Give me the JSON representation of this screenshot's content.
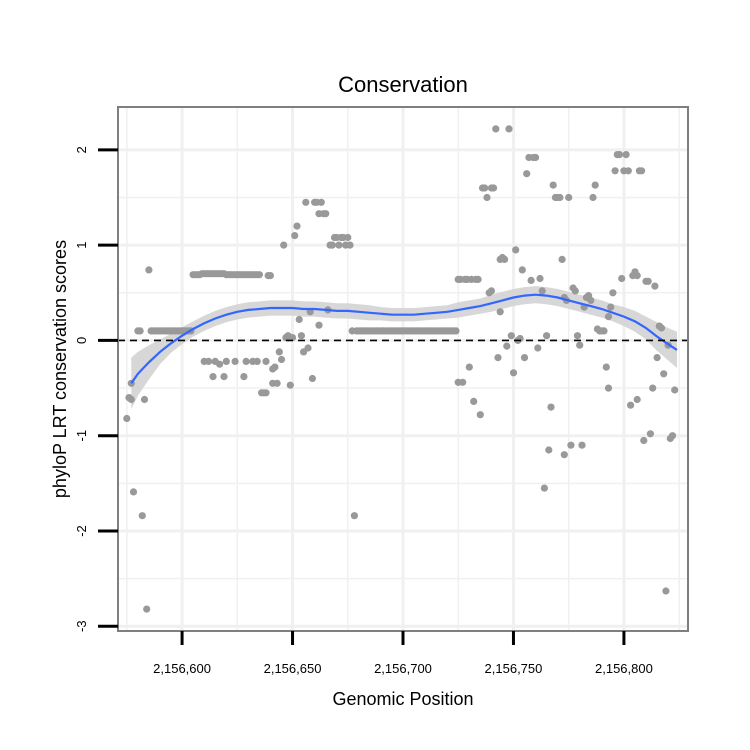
{
  "chart_data": {
    "type": "scatter",
    "title": "Conservation",
    "xlabel": "Genomic Position",
    "ylabel": "phyloP LRT conservation scores",
    "xlim": [
      2156571,
      2156829
    ],
    "ylim": [
      -3.05,
      2.45
    ],
    "x_ticks": [
      2156600,
      2156650,
      2156700,
      2156750,
      2156800
    ],
    "x_tick_labels": [
      "2,156,600",
      "2,156,650",
      "2,156,700",
      "2,156,750",
      "2,156,800"
    ],
    "y_ticks": [
      -3,
      -2,
      -1,
      0,
      1,
      2
    ],
    "y_tick_labels": [
      "-3",
      "-2",
      "-1",
      "0",
      "1",
      "2"
    ],
    "reference_line": {
      "y": 0,
      "style": "dashed"
    },
    "grid": true,
    "colors": {
      "points": "#999999",
      "smooth_line": "#3366ff",
      "confidence_band": "#d3d3d3",
      "panel_background": "#ffffff",
      "gridline": "#f0f0f0",
      "border": "#7f7f7f"
    },
    "points": [
      {
        "x": 2156575,
        "y": -0.82
      },
      {
        "x": 2156576,
        "y": -0.6
      },
      {
        "x": 2156577,
        "y": -0.45
      },
      {
        "x": 2156577,
        "y": -0.62
      },
      {
        "x": 2156578,
        "y": -1.59
      },
      {
        "x": 2156580,
        "y": 0.1
      },
      {
        "x": 2156581,
        "y": 0.1
      },
      {
        "x": 2156582,
        "y": -1.84
      },
      {
        "x": 2156583,
        "y": -0.62
      },
      {
        "x": 2156584,
        "y": -2.82
      },
      {
        "x": 2156585,
        "y": 0.74
      },
      {
        "x": 2156586,
        "y": 0.1
      },
      {
        "x": 2156587,
        "y": 0.1
      },
      {
        "x": 2156588,
        "y": 0.1
      },
      {
        "x": 2156589,
        "y": 0.1
      },
      {
        "x": 2156590,
        "y": 0.1
      },
      {
        "x": 2156591,
        "y": 0.1
      },
      {
        "x": 2156592,
        "y": 0.1
      },
      {
        "x": 2156593,
        "y": 0.1
      },
      {
        "x": 2156594,
        "y": 0.1
      },
      {
        "x": 2156595,
        "y": 0.1
      },
      {
        "x": 2156596,
        "y": 0.1
      },
      {
        "x": 2156597,
        "y": 0.1
      },
      {
        "x": 2156598,
        "y": 0.1
      },
      {
        "x": 2156599,
        "y": 0.1
      },
      {
        "x": 2156600,
        "y": 0.1
      },
      {
        "x": 2156601,
        "y": 0.1
      },
      {
        "x": 2156602,
        "y": 0.1
      },
      {
        "x": 2156603,
        "y": 0.1
      },
      {
        "x": 2156604,
        "y": 0.1
      },
      {
        "x": 2156605,
        "y": 0.69
      },
      {
        "x": 2156606,
        "y": 0.69
      },
      {
        "x": 2156607,
        "y": 0.69
      },
      {
        "x": 2156608,
        "y": 0.69
      },
      {
        "x": 2156609,
        "y": 0.7
      },
      {
        "x": 2156610,
        "y": -0.22
      },
      {
        "x": 2156610,
        "y": 0.7
      },
      {
        "x": 2156611,
        "y": 0.7
      },
      {
        "x": 2156612,
        "y": -0.22
      },
      {
        "x": 2156612,
        "y": 0.7
      },
      {
        "x": 2156613,
        "y": 0.7
      },
      {
        "x": 2156614,
        "y": -0.38
      },
      {
        "x": 2156614,
        "y": 0.7
      },
      {
        "x": 2156615,
        "y": -0.22
      },
      {
        "x": 2156615,
        "y": 0.7
      },
      {
        "x": 2156616,
        "y": 0.7
      },
      {
        "x": 2156617,
        "y": -0.25
      },
      {
        "x": 2156617,
        "y": 0.7
      },
      {
        "x": 2156618,
        "y": 0.7
      },
      {
        "x": 2156619,
        "y": -0.38
      },
      {
        "x": 2156619,
        "y": 0.7
      },
      {
        "x": 2156620,
        "y": -0.22
      },
      {
        "x": 2156620,
        "y": 0.69
      },
      {
        "x": 2156621,
        "y": 0.69
      },
      {
        "x": 2156622,
        "y": 0.69
      },
      {
        "x": 2156623,
        "y": 0.69
      },
      {
        "x": 2156624,
        "y": -0.22
      },
      {
        "x": 2156624,
        "y": 0.69
      },
      {
        "x": 2156625,
        "y": 0.69
      },
      {
        "x": 2156626,
        "y": 0.69
      },
      {
        "x": 2156627,
        "y": 0.69
      },
      {
        "x": 2156628,
        "y": -0.38
      },
      {
        "x": 2156628,
        "y": 0.69
      },
      {
        "x": 2156629,
        "y": -0.22
      },
      {
        "x": 2156629,
        "y": 0.69
      },
      {
        "x": 2156630,
        "y": 0.69
      },
      {
        "x": 2156631,
        "y": 0.69
      },
      {
        "x": 2156632,
        "y": -0.22
      },
      {
        "x": 2156632,
        "y": 0.69
      },
      {
        "x": 2156633,
        "y": 0.69
      },
      {
        "x": 2156634,
        "y": -0.22
      },
      {
        "x": 2156634,
        "y": 0.69
      },
      {
        "x": 2156635,
        "y": 0.69
      },
      {
        "x": 2156636,
        "y": -0.55
      },
      {
        "x": 2156637,
        "y": -0.55
      },
      {
        "x": 2156638,
        "y": -0.55
      },
      {
        "x": 2156638,
        "y": -0.22
      },
      {
        "x": 2156639,
        "y": 0.68
      },
      {
        "x": 2156640,
        "y": 0.68
      },
      {
        "x": 2156641,
        "y": -0.45
      },
      {
        "x": 2156641,
        "y": -0.3
      },
      {
        "x": 2156642,
        "y": -0.28
      },
      {
        "x": 2156643,
        "y": -0.45
      },
      {
        "x": 2156644,
        "y": -0.12
      },
      {
        "x": 2156645,
        "y": -0.2
      },
      {
        "x": 2156646,
        "y": 1.0
      },
      {
        "x": 2156647,
        "y": 0.03
      },
      {
        "x": 2156648,
        "y": 0.05
      },
      {
        "x": 2156649,
        "y": -0.47
      },
      {
        "x": 2156650,
        "y": 0.03
      },
      {
        "x": 2156651,
        "y": 1.1
      },
      {
        "x": 2156652,
        "y": 1.2
      },
      {
        "x": 2156653,
        "y": 0.22
      },
      {
        "x": 2156654,
        "y": 0.05
      },
      {
        "x": 2156655,
        "y": -0.12
      },
      {
        "x": 2156656,
        "y": 1.45
      },
      {
        "x": 2156657,
        "y": -0.08
      },
      {
        "x": 2156658,
        "y": 0.3
      },
      {
        "x": 2156659,
        "y": -0.4
      },
      {
        "x": 2156660,
        "y": 1.45
      },
      {
        "x": 2156661,
        "y": 1.45
      },
      {
        "x": 2156662,
        "y": 1.33
      },
      {
        "x": 2156662,
        "y": 0.16
      },
      {
        "x": 2156663,
        "y": 1.45
      },
      {
        "x": 2156664,
        "y": 1.33
      },
      {
        "x": 2156665,
        "y": 1.33
      },
      {
        "x": 2156666,
        "y": 0.32
      },
      {
        "x": 2156667,
        "y": 1.0
      },
      {
        "x": 2156668,
        "y": 1.0
      },
      {
        "x": 2156669,
        "y": 1.08
      },
      {
        "x": 2156670,
        "y": 1.08
      },
      {
        "x": 2156671,
        "y": 1.0
      },
      {
        "x": 2156672,
        "y": 1.08
      },
      {
        "x": 2156673,
        "y": 1.08
      },
      {
        "x": 2156674,
        "y": 1.0
      },
      {
        "x": 2156675,
        "y": 1.08
      },
      {
        "x": 2156676,
        "y": 1.0
      },
      {
        "x": 2156677,
        "y": 0.1
      },
      {
        "x": 2156678,
        "y": -1.84
      },
      {
        "x": 2156679,
        "y": 0.1
      },
      {
        "x": 2156680,
        "y": 0.1
      },
      {
        "x": 2156681,
        "y": 0.1
      },
      {
        "x": 2156682,
        "y": 0.1
      },
      {
        "x": 2156683,
        "y": 0.1
      },
      {
        "x": 2156684,
        "y": 0.1
      },
      {
        "x": 2156685,
        "y": 0.1
      },
      {
        "x": 2156686,
        "y": 0.1
      },
      {
        "x": 2156687,
        "y": 0.1
      },
      {
        "x": 2156688,
        "y": 0.1
      },
      {
        "x": 2156689,
        "y": 0.1
      },
      {
        "x": 2156690,
        "y": 0.1
      },
      {
        "x": 2156691,
        "y": 0.1
      },
      {
        "x": 2156692,
        "y": 0.1
      },
      {
        "x": 2156693,
        "y": 0.1
      },
      {
        "x": 2156694,
        "y": 0.1
      },
      {
        "x": 2156695,
        "y": 0.1
      },
      {
        "x": 2156696,
        "y": 0.1
      },
      {
        "x": 2156697,
        "y": 0.1
      },
      {
        "x": 2156698,
        "y": 0.1
      },
      {
        "x": 2156699,
        "y": 0.1
      },
      {
        "x": 2156700,
        "y": 0.1
      },
      {
        "x": 2156701,
        "y": 0.1
      },
      {
        "x": 2156702,
        "y": 0.1
      },
      {
        "x": 2156703,
        "y": 0.1
      },
      {
        "x": 2156704,
        "y": 0.1
      },
      {
        "x": 2156705,
        "y": 0.1
      },
      {
        "x": 2156706,
        "y": 0.1
      },
      {
        "x": 2156707,
        "y": 0.1
      },
      {
        "x": 2156708,
        "y": 0.1
      },
      {
        "x": 2156709,
        "y": 0.1
      },
      {
        "x": 2156710,
        "y": 0.1
      },
      {
        "x": 2156711,
        "y": 0.1
      },
      {
        "x": 2156712,
        "y": 0.1
      },
      {
        "x": 2156713,
        "y": 0.1
      },
      {
        "x": 2156714,
        "y": 0.1
      },
      {
        "x": 2156715,
        "y": 0.1
      },
      {
        "x": 2156716,
        "y": 0.1
      },
      {
        "x": 2156717,
        "y": 0.1
      },
      {
        "x": 2156718,
        "y": 0.1
      },
      {
        "x": 2156719,
        "y": 0.1
      },
      {
        "x": 2156720,
        "y": 0.1
      },
      {
        "x": 2156721,
        "y": 0.1
      },
      {
        "x": 2156722,
        "y": 0.1
      },
      {
        "x": 2156723,
        "y": 0.1
      },
      {
        "x": 2156724,
        "y": 0.1
      },
      {
        "x": 2156725,
        "y": 0.64
      },
      {
        "x": 2156725,
        "y": -0.44
      },
      {
        "x": 2156726,
        "y": 0.64
      },
      {
        "x": 2156727,
        "y": -0.44
      },
      {
        "x": 2156728,
        "y": 0.64
      },
      {
        "x": 2156729,
        "y": 0.64
      },
      {
        "x": 2156730,
        "y": -0.28
      },
      {
        "x": 2156731,
        "y": 0.64
      },
      {
        "x": 2156732,
        "y": -0.64
      },
      {
        "x": 2156733,
        "y": 0.64
      },
      {
        "x": 2156734,
        "y": 0.64
      },
      {
        "x": 2156735,
        "y": -0.78
      },
      {
        "x": 2156736,
        "y": 1.6
      },
      {
        "x": 2156737,
        "y": 1.6
      },
      {
        "x": 2156738,
        "y": 1.5
      },
      {
        "x": 2156739,
        "y": 0.5
      },
      {
        "x": 2156740,
        "y": 0.52
      },
      {
        "x": 2156740,
        "y": 1.6
      },
      {
        "x": 2156741,
        "y": 1.6
      },
      {
        "x": 2156742,
        "y": 2.22
      },
      {
        "x": 2156743,
        "y": -0.18
      },
      {
        "x": 2156744,
        "y": 0.85
      },
      {
        "x": 2156744,
        "y": 0.3
      },
      {
        "x": 2156745,
        "y": 0.87
      },
      {
        "x": 2156746,
        "y": 0.85
      },
      {
        "x": 2156747,
        "y": -0.06
      },
      {
        "x": 2156748,
        "y": 2.22
      },
      {
        "x": 2156749,
        "y": 0.05
      },
      {
        "x": 2156750,
        "y": -0.34
      },
      {
        "x": 2156751,
        "y": 0.95
      },
      {
        "x": 2156752,
        "y": 0.0
      },
      {
        "x": 2156753,
        "y": 0.02
      },
      {
        "x": 2156754,
        "y": 0.74
      },
      {
        "x": 2156755,
        "y": -0.18
      },
      {
        "x": 2156756,
        "y": 1.75
      },
      {
        "x": 2156757,
        "y": 1.92
      },
      {
        "x": 2156758,
        "y": 0.63
      },
      {
        "x": 2156759,
        "y": 1.92
      },
      {
        "x": 2156760,
        "y": 1.92
      },
      {
        "x": 2156761,
        "y": -0.08
      },
      {
        "x": 2156762,
        "y": 0.65
      },
      {
        "x": 2156763,
        "y": 0.52
      },
      {
        "x": 2156764,
        "y": -1.55
      },
      {
        "x": 2156765,
        "y": 0.05
      },
      {
        "x": 2156766,
        "y": -1.15
      },
      {
        "x": 2156767,
        "y": -0.7
      },
      {
        "x": 2156768,
        "y": 1.63
      },
      {
        "x": 2156769,
        "y": 1.5
      },
      {
        "x": 2156770,
        "y": 1.5
      },
      {
        "x": 2156771,
        "y": 1.5
      },
      {
        "x": 2156772,
        "y": 0.85
      },
      {
        "x": 2156773,
        "y": 0.45
      },
      {
        "x": 2156773,
        "y": -1.2
      },
      {
        "x": 2156774,
        "y": 0.42
      },
      {
        "x": 2156775,
        "y": 1.5
      },
      {
        "x": 2156776,
        "y": -1.1
      },
      {
        "x": 2156777,
        "y": 0.55
      },
      {
        "x": 2156778,
        "y": 0.52
      },
      {
        "x": 2156779,
        "y": 0.05
      },
      {
        "x": 2156780,
        "y": -0.05
      },
      {
        "x": 2156781,
        "y": -1.1
      },
      {
        "x": 2156782,
        "y": 0.35
      },
      {
        "x": 2156783,
        "y": 0.45
      },
      {
        "x": 2156784,
        "y": 0.47
      },
      {
        "x": 2156785,
        "y": 0.42
      },
      {
        "x": 2156786,
        "y": 1.5
      },
      {
        "x": 2156787,
        "y": 1.63
      },
      {
        "x": 2156788,
        "y": 0.12
      },
      {
        "x": 2156789,
        "y": 0.1
      },
      {
        "x": 2156790,
        "y": 0.1
      },
      {
        "x": 2156791,
        "y": 0.1
      },
      {
        "x": 2156792,
        "y": -0.28
      },
      {
        "x": 2156793,
        "y": -0.5
      },
      {
        "x": 2156793,
        "y": 0.25
      },
      {
        "x": 2156794,
        "y": 0.35
      },
      {
        "x": 2156795,
        "y": 0.5
      },
      {
        "x": 2156796,
        "y": 1.78
      },
      {
        "x": 2156797,
        "y": 1.95
      },
      {
        "x": 2156798,
        "y": 1.95
      },
      {
        "x": 2156799,
        "y": 0.65
      },
      {
        "x": 2156800,
        "y": 1.78
      },
      {
        "x": 2156801,
        "y": 1.95
      },
      {
        "x": 2156802,
        "y": 1.78
      },
      {
        "x": 2156803,
        "y": -0.68
      },
      {
        "x": 2156804,
        "y": 0.68
      },
      {
        "x": 2156805,
        "y": 0.72
      },
      {
        "x": 2156806,
        "y": -0.62
      },
      {
        "x": 2156806,
        "y": 0.68
      },
      {
        "x": 2156807,
        "y": 1.78
      },
      {
        "x": 2156808,
        "y": 1.78
      },
      {
        "x": 2156809,
        "y": -1.05
      },
      {
        "x": 2156810,
        "y": 0.62
      },
      {
        "x": 2156811,
        "y": 0.62
      },
      {
        "x": 2156812,
        "y": -0.98
      },
      {
        "x": 2156813,
        "y": -0.5
      },
      {
        "x": 2156814,
        "y": 0.57
      },
      {
        "x": 2156815,
        "y": -0.18
      },
      {
        "x": 2156816,
        "y": 0.15
      },
      {
        "x": 2156817,
        "y": 0.13
      },
      {
        "x": 2156818,
        "y": -0.35
      },
      {
        "x": 2156819,
        "y": -2.63
      },
      {
        "x": 2156820,
        "y": -0.05
      },
      {
        "x": 2156821,
        "y": -1.03
      },
      {
        "x": 2156822,
        "y": -1.0
      },
      {
        "x": 2156823,
        "y": -0.52
      }
    ],
    "smooth": {
      "x": [
        2156577,
        2156580,
        2156585,
        2156590,
        2156595,
        2156600,
        2156605,
        2156610,
        2156615,
        2156620,
        2156625,
        2156630,
        2156635,
        2156640,
        2156645,
        2156650,
        2156655,
        2156660,
        2156665,
        2156670,
        2156675,
        2156680,
        2156685,
        2156690,
        2156695,
        2156700,
        2156705,
        2156710,
        2156715,
        2156720,
        2156725,
        2156730,
        2156735,
        2156740,
        2156745,
        2156750,
        2156755,
        2156760,
        2156765,
        2156770,
        2156775,
        2156780,
        2156785,
        2156790,
        2156795,
        2156800,
        2156805,
        2156810,
        2156815,
        2156820,
        2156824
      ],
      "y": [
        -0.45,
        -0.35,
        -0.23,
        -0.12,
        -0.03,
        0.05,
        0.12,
        0.18,
        0.23,
        0.27,
        0.3,
        0.32,
        0.33,
        0.34,
        0.34,
        0.34,
        0.33,
        0.33,
        0.32,
        0.31,
        0.31,
        0.3,
        0.29,
        0.28,
        0.27,
        0.27,
        0.27,
        0.28,
        0.29,
        0.3,
        0.32,
        0.34,
        0.36,
        0.39,
        0.42,
        0.45,
        0.47,
        0.48,
        0.47,
        0.45,
        0.42,
        0.39,
        0.36,
        0.33,
        0.29,
        0.25,
        0.2,
        0.13,
        0.04,
        -0.04,
        -0.1
      ],
      "lower": [
        -0.72,
        -0.58,
        -0.41,
        -0.25,
        -0.13,
        -0.04,
        0.04,
        0.1,
        0.15,
        0.19,
        0.22,
        0.24,
        0.25,
        0.26,
        0.26,
        0.26,
        0.25,
        0.25,
        0.24,
        0.23,
        0.23,
        0.22,
        0.21,
        0.21,
        0.2,
        0.2,
        0.2,
        0.21,
        0.22,
        0.23,
        0.24,
        0.26,
        0.28,
        0.3,
        0.33,
        0.36,
        0.38,
        0.39,
        0.38,
        0.36,
        0.33,
        0.3,
        0.27,
        0.24,
        0.2,
        0.15,
        0.09,
        0.01,
        -0.11,
        -0.21,
        -0.29
      ],
      "upper": [
        -0.18,
        -0.12,
        -0.05,
        0.01,
        0.07,
        0.14,
        0.2,
        0.26,
        0.31,
        0.35,
        0.38,
        0.4,
        0.41,
        0.42,
        0.42,
        0.42,
        0.41,
        0.41,
        0.4,
        0.39,
        0.39,
        0.38,
        0.37,
        0.35,
        0.34,
        0.34,
        0.34,
        0.35,
        0.36,
        0.37,
        0.4,
        0.42,
        0.44,
        0.48,
        0.51,
        0.54,
        0.56,
        0.57,
        0.56,
        0.54,
        0.51,
        0.48,
        0.45,
        0.42,
        0.38,
        0.35,
        0.31,
        0.25,
        0.19,
        0.13,
        0.09
      ]
    }
  }
}
